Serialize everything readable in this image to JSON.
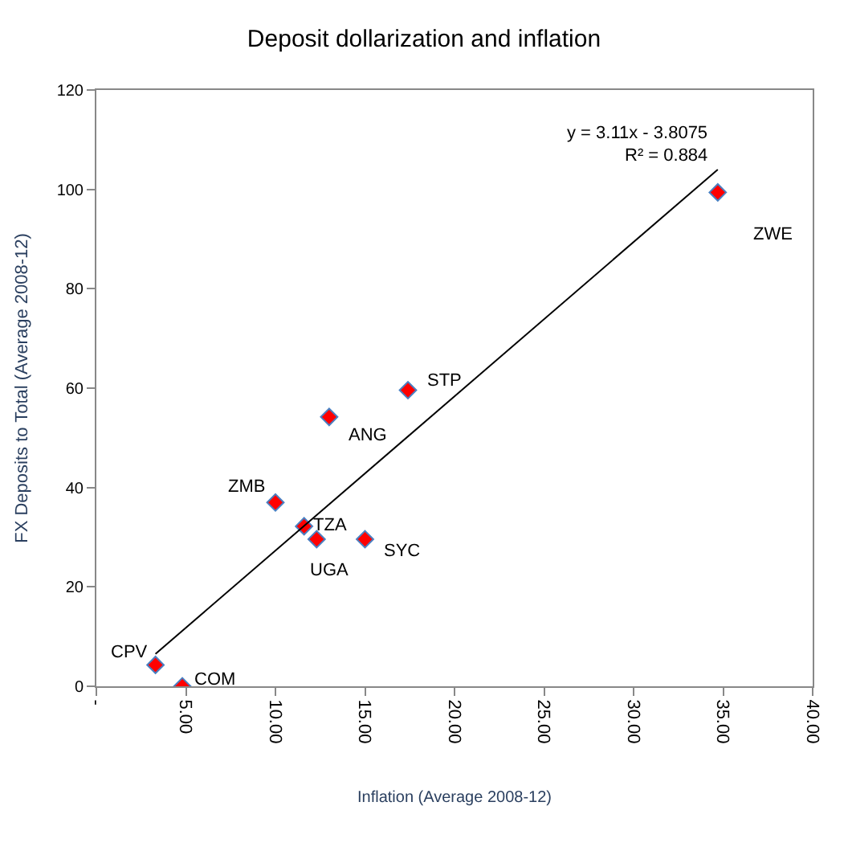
{
  "chart_data": {
    "type": "scatter",
    "title": "Deposit dollarization and inflation",
    "xlabel": "Inflation (Average 2008-12)",
    "ylabel": "FX Deposits to Total (Average 2008-12)",
    "xlim": [
      0,
      40
    ],
    "xticks": [
      {
        "value": 0,
        "label": "-"
      },
      {
        "value": 5,
        "label": "5.00"
      },
      {
        "value": 10,
        "label": "10.00"
      },
      {
        "value": 15,
        "label": "15.00"
      },
      {
        "value": 20,
        "label": "20.00"
      },
      {
        "value": 25,
        "label": "25.00"
      },
      {
        "value": 30,
        "label": "30.00"
      },
      {
        "value": 35,
        "label": "35.00"
      },
      {
        "value": 40,
        "label": "40.00"
      }
    ],
    "ylim": [
      0,
      120
    ],
    "yticks": [
      0,
      20,
      40,
      60,
      80,
      100,
      120
    ],
    "series": [
      {
        "marker": "diamond",
        "color": "#ff0000",
        "x": [
          3.3,
          4.8,
          10.0,
          11.6,
          12.3,
          15.0,
          13.0,
          17.4,
          34.7
        ],
        "values": [
          4.3,
          0,
          37.0,
          32.2,
          29.6,
          29.6,
          54.2,
          59.6,
          99.4
        ]
      },
      {
        "type": "line",
        "color": "#000000",
        "x": [
          3.3,
          34.7
        ],
        "values": [
          6.5,
          104
        ]
      }
    ],
    "annotations": [
      {
        "text": "CPV",
        "x": 3.3,
        "y": 4.3
      },
      {
        "text": "COM",
        "x": 4.8,
        "y": 0
      },
      {
        "text": "ZMB",
        "x": 10.0,
        "y": 37.0
      },
      {
        "text": "TZA",
        "x": 11.6,
        "y": 32.2
      },
      {
        "text": "UGA",
        "x": 12.3,
        "y": 29.6
      },
      {
        "text": "SYC",
        "x": 15.0,
        "y": 29.6
      },
      {
        "text": "ANG",
        "x": 13.0,
        "y": 54.2
      },
      {
        "text": "STP",
        "x": 17.4,
        "y": 59.6
      },
      {
        "text": "ZWE",
        "x": 34.7,
        "y": 99.4
      },
      {
        "text": "y = 3.11x - 3.8075",
        "x": 34.7,
        "y": 104
      },
      {
        "text": "R² = 0.884",
        "x": 34.7,
        "y": 104
      }
    ]
  }
}
